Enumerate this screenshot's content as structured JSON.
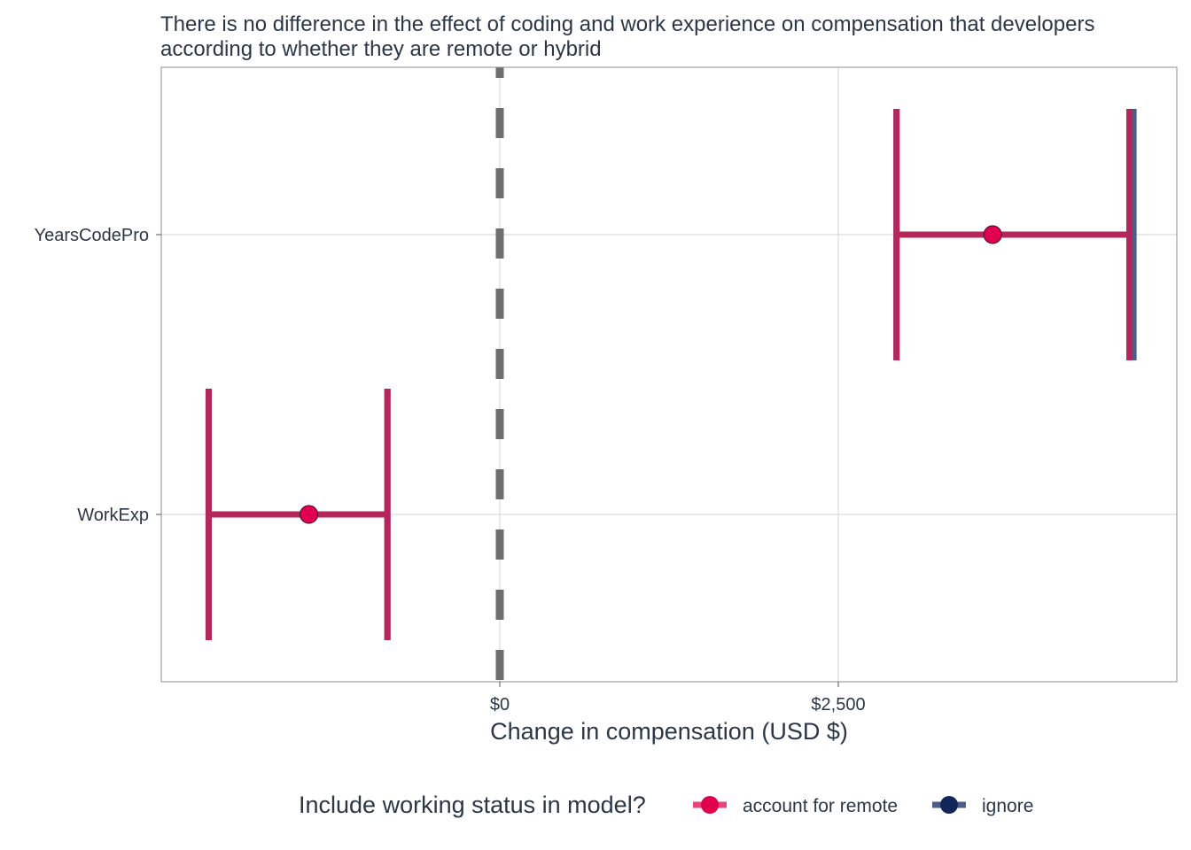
{
  "colors": {
    "account_for_remote": "#e0004d",
    "account_for_remote_line": "#e8457a",
    "ignore": "#13265c",
    "ignore_line": "#4c5d8a",
    "combined_bar": "#b5265a",
    "zero_line": "#6e6e6e",
    "grid": "#d3d3d3",
    "panel_border": "#8c8c8c"
  },
  "chart_data": {
    "type": "scatter",
    "title": "There is no difference in the effect of coding and work experience on compensation that developers",
    "subtitle": "according to whether they are remote or hybrid",
    "xlabel": "Change in compensation (USD $)",
    "ylabel": "",
    "categories": [
      "YearsCodePro",
      "WorkExp"
    ],
    "xlim": [
      -2500,
      5000
    ],
    "x_ticks": [
      0,
      2500
    ],
    "x_tick_labels": [
      "$0",
      "$2,500"
    ],
    "reference_line": 0,
    "grid": true,
    "legend": {
      "title": "Include working status in model?",
      "placement": "bottom"
    },
    "series": [
      {
        "name": "account for remote",
        "color": "#e0004d",
        "estimates": [
          {
            "category": "YearsCodePro",
            "value": 3640,
            "low": 2930,
            "high": 4650
          },
          {
            "category": "WorkExp",
            "value": -1410,
            "low": -2150,
            "high": -830
          }
        ]
      },
      {
        "name": "ignore",
        "color": "#13265c",
        "estimates": [
          {
            "category": "YearsCodePro",
            "value": 3640,
            "low": 2930,
            "high": 4680
          },
          {
            "category": "WorkExp",
            "value": -1410,
            "low": -2150,
            "high": -830
          }
        ]
      }
    ]
  }
}
